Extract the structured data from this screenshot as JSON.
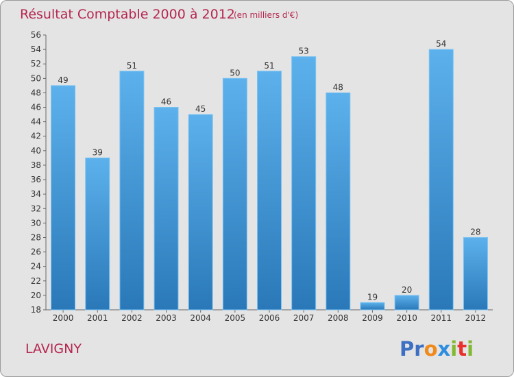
{
  "chart_data": {
    "type": "bar",
    "title": "Résultat Comptable 2000 à 2012",
    "subtitle": "(en milliers d'€)",
    "categories": [
      "2000",
      "2001",
      "2002",
      "2003",
      "2004",
      "2005",
      "2006",
      "2007",
      "2008",
      "2009",
      "2010",
      "2011",
      "2012"
    ],
    "values": [
      49,
      39,
      51,
      46,
      45,
      50,
      51,
      53,
      48,
      19,
      20,
      54,
      28
    ],
    "ylim": [
      18,
      56
    ],
    "yticks": [
      18,
      20,
      22,
      24,
      26,
      28,
      30,
      32,
      34,
      36,
      38,
      40,
      42,
      44,
      46,
      48,
      50,
      52,
      54,
      56
    ],
    "grid": false,
    "bar_color": "#4a9fe0"
  },
  "commune": "LAVIGNY",
  "logo": {
    "text": "Proxiti",
    "letters": [
      {
        "ch": "P",
        "color": "#3d6fc2"
      },
      {
        "ch": "r",
        "color": "#3d6fc2"
      },
      {
        "ch": "o",
        "color": "#f08a1c"
      },
      {
        "ch": "x",
        "color": "#2e8de0"
      },
      {
        "ch": "i",
        "color": "#82b832"
      },
      {
        "ch": "t",
        "color": "#e8302c"
      },
      {
        "ch": "i",
        "color": "#82b832"
      }
    ]
  }
}
